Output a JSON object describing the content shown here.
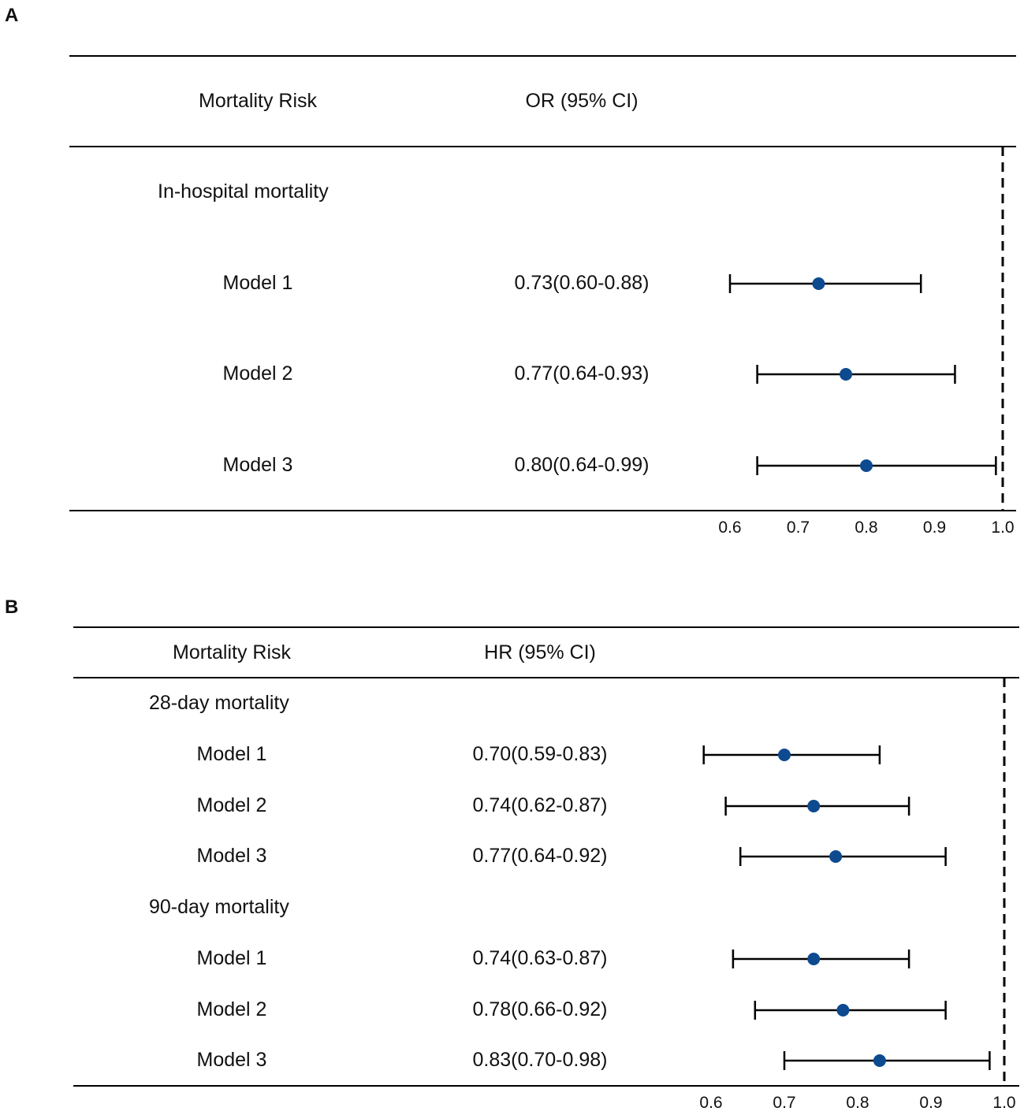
{
  "chart_data": [
    {
      "type": "forest",
      "panel": "A",
      "col_label": "Mortality Risk",
      "col_stat": "OR (95% CI)",
      "reference_value": 1.0,
      "xlim": [
        0.6,
        1.0
      ],
      "xticks": [
        "0.6",
        "0.7",
        "0.8",
        "0.9",
        "1.0"
      ],
      "groups": [
        {
          "name": "In-hospital mortality",
          "rows": [
            {
              "label": "Model 1",
              "text": "0.73(0.60-0.88)",
              "est": 0.73,
              "lo": 0.6,
              "hi": 0.88
            },
            {
              "label": "Model 2",
              "text": "0.77(0.64-0.93)",
              "est": 0.77,
              "lo": 0.64,
              "hi": 0.93
            },
            {
              "label": "Model 3",
              "text": "0.80(0.64-0.99)",
              "est": 0.8,
              "lo": 0.64,
              "hi": 0.99
            }
          ]
        }
      ]
    },
    {
      "type": "forest",
      "panel": "B",
      "col_label": "Mortality Risk",
      "col_stat": "HR (95% CI)",
      "reference_value": 1.0,
      "xlim": [
        0.6,
        1.0
      ],
      "xticks": [
        "0.6",
        "0.7",
        "0.8",
        "0.9",
        "1.0"
      ],
      "groups": [
        {
          "name": "28-day mortality",
          "rows": [
            {
              "label": "Model 1",
              "text": "0.70(0.59-0.83)",
              "est": 0.7,
              "lo": 0.59,
              "hi": 0.83
            },
            {
              "label": "Model 2",
              "text": "0.74(0.62-0.87)",
              "est": 0.74,
              "lo": 0.62,
              "hi": 0.87
            },
            {
              "label": "Model 3",
              "text": "0.77(0.64-0.92)",
              "est": 0.77,
              "lo": 0.64,
              "hi": 0.92
            }
          ]
        },
        {
          "name": "90-day mortality",
          "rows": [
            {
              "label": "Model 1",
              "text": "0.74(0.63-0.87)",
              "est": 0.74,
              "lo": 0.63,
              "hi": 0.87
            },
            {
              "label": "Model 2",
              "text": "0.78(0.66-0.92)",
              "est": 0.78,
              "lo": 0.66,
              "hi": 0.92
            },
            {
              "label": "Model 3",
              "text": "0.83(0.70-0.98)",
              "est": 0.83,
              "lo": 0.7,
              "hi": 0.98
            }
          ]
        }
      ]
    }
  ],
  "colors": {
    "marker": "#0d4a8f",
    "line": "#000000"
  }
}
